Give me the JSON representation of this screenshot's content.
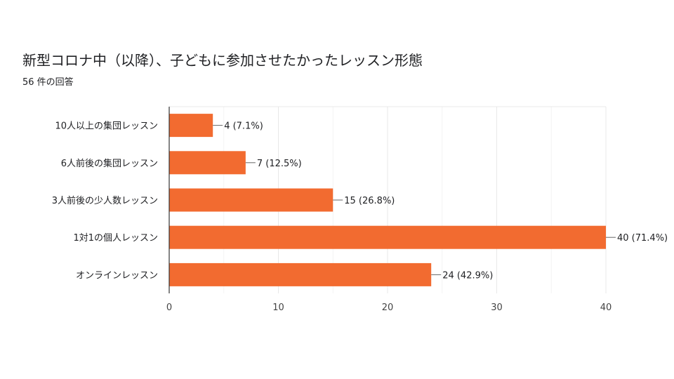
{
  "chart_data": {
    "type": "bar",
    "orientation": "horizontal",
    "title": "新型コロナ中（以降）、子どもに参加させたかったレッスン形態",
    "subtitle": "56 件の回答",
    "categories": [
      "10人以上の集団レッスン",
      "6人前後の集団レッスン",
      "3人前後の少人数レッスン",
      "1対1の個人レッスン",
      "オンラインレッスン"
    ],
    "values": [
      4,
      7,
      15,
      40,
      24
    ],
    "data_labels": [
      "4 (7.1%)",
      "7 (12.5%)",
      "15 (26.8%)",
      "40 (71.4%)",
      "24 (42.9%)"
    ],
    "xlim": [
      0,
      40
    ],
    "xticks": [
      0,
      10,
      20,
      30,
      40
    ],
    "grid": true,
    "bar_color": "#f26b30",
    "grid_color": "#e8e8e8",
    "axis_color": "#333333"
  }
}
